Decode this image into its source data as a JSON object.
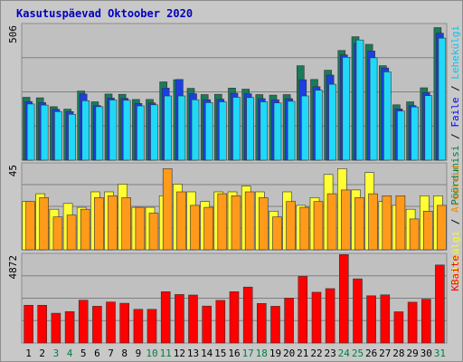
{
  "title": "Kasutuspäevad Oktoober 2020",
  "colors": {
    "title": "#0000c0",
    "weekend": "#008040",
    "weekday": "#000000",
    "panel_bg": "#c0c0c0",
    "grid": "#808080",
    "frame": "#c8c8c8"
  },
  "chart_data": [
    {
      "type": "bar",
      "panel": "top",
      "ylim": [
        0,
        506
      ],
      "max_label": "506",
      "categories": [
        "1",
        "2",
        "3",
        "4",
        "5",
        "6",
        "7",
        "8",
        "9",
        "10",
        "11",
        "12",
        "13",
        "14",
        "15",
        "16",
        "17",
        "18",
        "19",
        "20",
        "21",
        "22",
        "23",
        "24",
        "25",
        "26",
        "27",
        "28",
        "29",
        "30",
        "31"
      ],
      "weekend_days": [
        "3",
        "4",
        "10",
        "11",
        "17",
        "18",
        "24",
        "25",
        "31"
      ],
      "legend": [
        {
          "label": "Pöördumisi",
          "color": "#008040"
        },
        {
          "label": "Faile",
          "color": "#0000ff"
        },
        {
          "label": "Lehekülgi",
          "color": "#00c8f0"
        }
      ],
      "series": [
        {
          "name": "Pöördumisi",
          "color": "#1a7a5a",
          "values": [
            233,
            231,
            198,
            189,
            256,
            216,
            245,
            244,
            225,
            225,
            290,
            298,
            266,
            243,
            244,
            267,
            263,
            243,
            241,
            243,
            350,
            299,
            333,
            406,
            457,
            429,
            350,
            205,
            216,
            268,
            491
          ]
        },
        {
          "name": "Faile",
          "color": "#1c3fe0",
          "values": [
            217,
            213,
            188,
            180,
            245,
            202,
            230,
            229,
            210,
            212,
            267,
            299,
            246,
            224,
            226,
            248,
            246,
            228,
            224,
            228,
            298,
            272,
            315,
            390,
            432,
            404,
            341,
            190,
            202,
            250,
            470
          ]
        },
        {
          "name": "Lehekülgi",
          "color": "#20d8f8",
          "values": [
            208,
            204,
            180,
            170,
            220,
            198,
            223,
            222,
            201,
            205,
            238,
            238,
            224,
            213,
            216,
            233,
            232,
            216,
            212,
            218,
            238,
            259,
            281,
            381,
            445,
            379,
            327,
            182,
            197,
            239,
            452
          ]
        }
      ]
    },
    {
      "type": "bar",
      "panel": "middle",
      "ylim": [
        0,
        45
      ],
      "max_label": "45",
      "categories": [
        "1",
        "2",
        "3",
        "4",
        "5",
        "6",
        "7",
        "8",
        "9",
        "10",
        "11",
        "12",
        "13",
        "14",
        "15",
        "16",
        "17",
        "18",
        "19",
        "20",
        "21",
        "22",
        "23",
        "24",
        "25",
        "26",
        "27",
        "28",
        "29",
        "30",
        "31"
      ],
      "legend": [
        {
          "label": "Lehekülgi",
          "color": "#ffff00"
        },
        {
          "label": "Arvuteid",
          "color": "#f08c00"
        }
      ],
      "series": [
        {
          "name": "Lehekülgi",
          "color": "#ffff33",
          "values": [
            25,
            29,
            21,
            24,
            22,
            30,
            30,
            34,
            22,
            22,
            28,
            34,
            30,
            25,
            30,
            30,
            33,
            30,
            20,
            30,
            23,
            27,
            39,
            42,
            31,
            40,
            25,
            23,
            21,
            28,
            28
          ]
        },
        {
          "name": "Arvuteid",
          "color": "#ff9a1a",
          "values": [
            25,
            27,
            17,
            18,
            21,
            27,
            28,
            27,
            22,
            19,
            42,
            30,
            23,
            22,
            29,
            28,
            30,
            27,
            17,
            25,
            22,
            25,
            29,
            31,
            27,
            29,
            28,
            28,
            16,
            20,
            23
          ]
        }
      ]
    },
    {
      "type": "bar",
      "panel": "bottom",
      "ylim": [
        0,
        4872
      ],
      "max_label": "4872",
      "categories": [
        "1",
        "2",
        "3",
        "4",
        "5",
        "6",
        "7",
        "8",
        "9",
        "10",
        "11",
        "12",
        "13",
        "14",
        "15",
        "16",
        "17",
        "18",
        "19",
        "20",
        "21",
        "22",
        "23",
        "24",
        "25",
        "26",
        "27",
        "28",
        "29",
        "30",
        "31"
      ],
      "legend": [
        {
          "label": "KBaite",
          "color": "#ff0000"
        }
      ],
      "series": [
        {
          "name": "KBaite",
          "color": "#ff0000",
          "values": [
            2050,
            2050,
            1620,
            1710,
            2330,
            2000,
            2230,
            2160,
            1830,
            1830,
            2790,
            2640,
            2610,
            2010,
            2320,
            2790,
            3040,
            2150,
            2000,
            2440,
            3620,
            2760,
            2960,
            4810,
            3490,
            2570,
            2620,
            1700,
            2220,
            2380,
            4240
          ]
        }
      ]
    }
  ]
}
